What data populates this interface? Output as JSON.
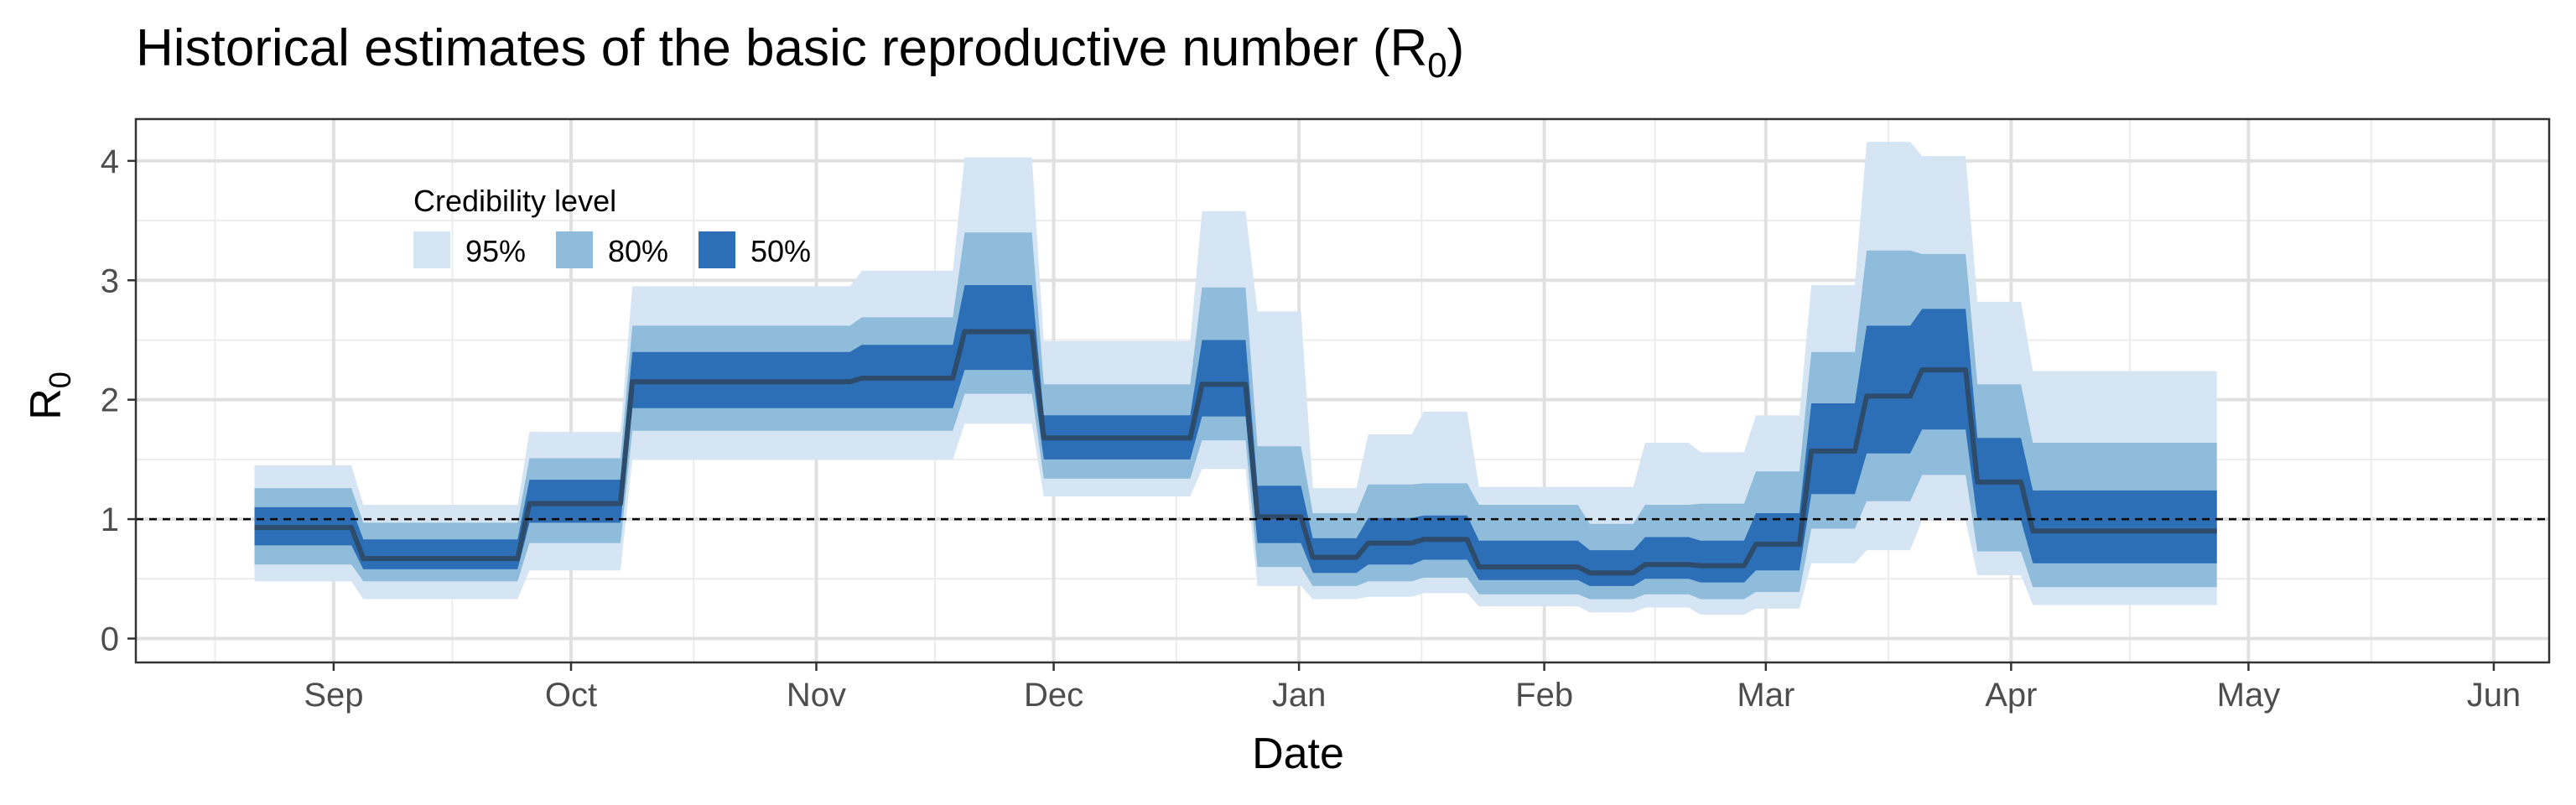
{
  "chart_data": {
    "type": "area",
    "title": "Historical estimates of the basic reproductive number (R",
    "title_subscript": "0",
    "title_close": ")",
    "xlabel": "Date",
    "ylabel": "R",
    "ylabel_subscript": "0",
    "x_ticks": [
      "Sep",
      "Oct",
      "Nov",
      "Dec",
      "Jan",
      "Feb",
      "Mar",
      "Apr",
      "May",
      "Jun"
    ],
    "x_tick_dates": [
      "2018-09-01",
      "2018-10-01",
      "2018-11-01",
      "2018-12-01",
      "2019-01-01",
      "2019-02-01",
      "2019-03-01",
      "2019-04-01",
      "2019-05-01",
      "2019-06-01"
    ],
    "xlim": [
      "2018-08-07",
      "2019-06-08"
    ],
    "y_ticks": [
      "0",
      "1",
      "2",
      "3",
      "4"
    ],
    "ylim": [
      -0.2,
      4.35
    ],
    "grid": true,
    "reference_line": {
      "y": 1,
      "style": "dashed"
    },
    "legend": {
      "title": "Credibility level",
      "placement": "top-left",
      "entries": [
        {
          "label": "95%",
          "color": "#d6e5f4"
        },
        {
          "label": "80%",
          "color": "#8fbcdb"
        },
        {
          "label": "50%",
          "color": "#2c6fb7"
        }
      ]
    },
    "median_color": "#2d4b6b",
    "step_dates": [
      "2018-08-22",
      "2018-09-04",
      "2018-09-25",
      "2018-10-08",
      "2018-11-06",
      "2018-11-19",
      "2018-11-29",
      "2018-12-19",
      "2018-12-26",
      "2019-01-02",
      "2019-01-09",
      "2019-01-16",
      "2019-01-23",
      "2019-02-06",
      "2019-02-13",
      "2019-02-20",
      "2019-02-27",
      "2019-03-06",
      "2019-03-13",
      "2019-03-20",
      "2019-03-27",
      "2019-04-03",
      "2019-04-27"
    ],
    "median": [
      0.93,
      0.67,
      1.13,
      2.15,
      2.18,
      2.57,
      1.68,
      2.13,
      1.02,
      0.68,
      0.8,
      0.83,
      0.6,
      0.55,
      0.62,
      0.61,
      0.79,
      1.57,
      2.03,
      2.25,
      1.31,
      0.9,
      0.9
    ],
    "lower_50": [
      0.78,
      0.58,
      0.97,
      1.93,
      1.93,
      2.25,
      1.5,
      1.86,
      0.8,
      0.55,
      0.62,
      0.66,
      0.49,
      0.44,
      0.5,
      0.47,
      0.57,
      1.21,
      1.55,
      1.75,
      0.99,
      0.63,
      0.63
    ],
    "upper_50": [
      1.1,
      0.83,
      1.33,
      2.4,
      2.46,
      2.96,
      1.87,
      2.5,
      1.28,
      0.84,
      1.01,
      1.03,
      0.82,
      0.74,
      0.85,
      0.82,
      1.05,
      1.97,
      2.62,
      2.76,
      1.68,
      1.24,
      1.24
    ],
    "lower_80": [
      0.62,
      0.48,
      0.8,
      1.74,
      1.74,
      2.05,
      1.34,
      1.66,
      0.6,
      0.44,
      0.48,
      0.51,
      0.37,
      0.33,
      0.37,
      0.33,
      0.39,
      0.92,
      1.15,
      1.37,
      0.73,
      0.43,
      0.43
    ],
    "upper_80": [
      1.26,
      0.97,
      1.51,
      2.62,
      2.69,
      3.4,
      2.13,
      2.94,
      1.61,
      1.05,
      1.29,
      1.3,
      1.12,
      0.96,
      1.12,
      1.13,
      1.4,
      2.4,
      3.25,
      3.22,
      2.13,
      1.64,
      1.64
    ],
    "lower_95": [
      0.48,
      0.33,
      0.57,
      1.5,
      1.5,
      1.8,
      1.19,
      1.42,
      0.44,
      0.33,
      0.35,
      0.38,
      0.27,
      0.22,
      0.26,
      0.2,
      0.25,
      0.63,
      0.74,
      0.99,
      0.53,
      0.28,
      0.28
    ],
    "upper_95": [
      1.45,
      1.12,
      1.73,
      2.95,
      3.08,
      4.03,
      2.49,
      3.58,
      2.74,
      1.26,
      1.71,
      1.9,
      1.27,
      1.27,
      1.64,
      1.56,
      1.87,
      2.96,
      4.16,
      4.04,
      2.82,
      2.24,
      2.24
    ]
  }
}
